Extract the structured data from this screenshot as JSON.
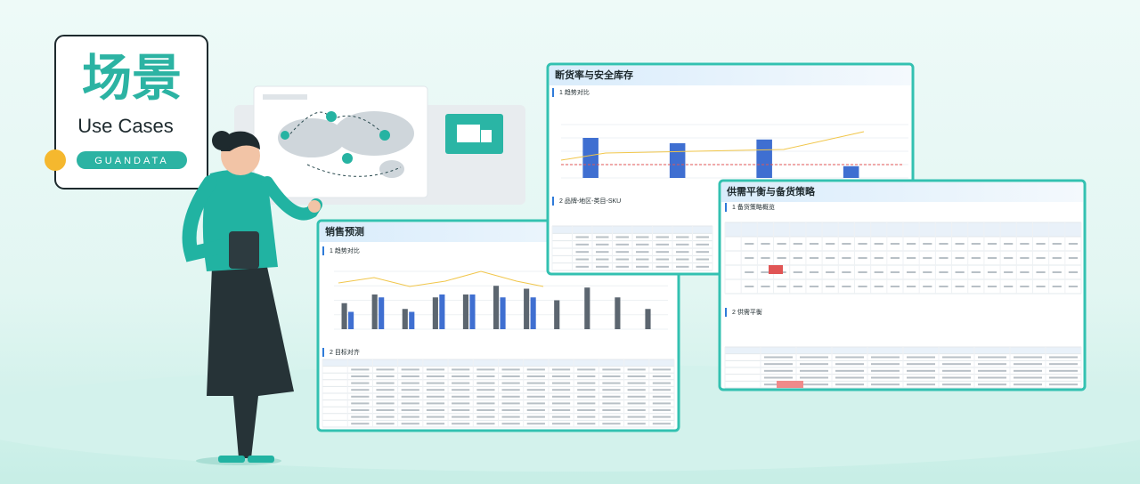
{
  "badge": {
    "title": "场景",
    "subtitle": "Use Cases",
    "brand": "GUANDATA"
  },
  "dashboards": [
    {
      "title": "销售预测",
      "sections": [
        "1 趋势对比",
        "2 目标对齐"
      ]
    },
    {
      "title": "断货率与安全库存",
      "sections": [
        "1 趋势对比",
        "2 品牌-地区-类目-SKU"
      ]
    },
    {
      "title": "供需平衡与备货策略",
      "sections": [
        "1 备货策略概览",
        "2 供需平衡"
      ]
    }
  ]
}
